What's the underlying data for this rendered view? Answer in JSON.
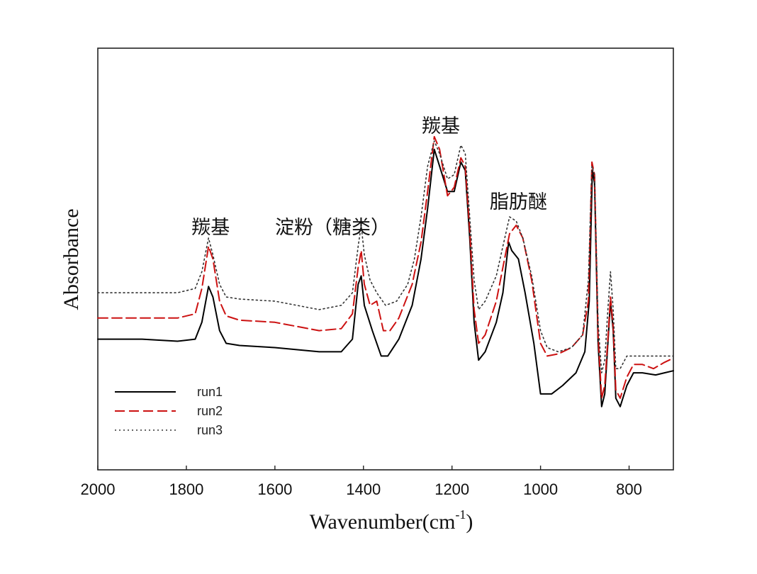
{
  "chart_data": {
    "type": "line",
    "xlabel": "Wavenumber(cm",
    "xlabel_sup": "-1",
    "xlabel_close": ")",
    "ylabel": "Absorbance",
    "xlim": [
      2000,
      700
    ],
    "x_reversed": true,
    "ylim": [
      0,
      1
    ],
    "y_ticks_shown": false,
    "grid": false,
    "x_ticks": [
      2000,
      1800,
      1600,
      1400,
      1200,
      1000,
      800
    ],
    "legend_position": "bottom-left",
    "annotations": [
      {
        "text": "羰基",
        "x": 1745,
        "y": 0.56
      },
      {
        "text": "淀粉（糖类）",
        "x": 1470,
        "y": 0.56
      },
      {
        "text": "羰基",
        "x": 1225,
        "y": 0.8
      },
      {
        "text": "脂肪醚",
        "x": 1050,
        "y": 0.62
      }
    ],
    "series": [
      {
        "name": "run1",
        "color": "#000000",
        "style": "solid",
        "points": [
          [
            2000,
            0.31
          ],
          [
            1900,
            0.31
          ],
          [
            1820,
            0.305
          ],
          [
            1780,
            0.31
          ],
          [
            1765,
            0.35
          ],
          [
            1750,
            0.435
          ],
          [
            1740,
            0.41
          ],
          [
            1725,
            0.33
          ],
          [
            1710,
            0.3
          ],
          [
            1680,
            0.295
          ],
          [
            1600,
            0.29
          ],
          [
            1500,
            0.28
          ],
          [
            1450,
            0.28
          ],
          [
            1425,
            0.31
          ],
          [
            1412,
            0.44
          ],
          [
            1405,
            0.46
          ],
          [
            1398,
            0.39
          ],
          [
            1380,
            0.33
          ],
          [
            1360,
            0.27
          ],
          [
            1345,
            0.27
          ],
          [
            1320,
            0.31
          ],
          [
            1290,
            0.39
          ],
          [
            1270,
            0.5
          ],
          [
            1255,
            0.62
          ],
          [
            1240,
            0.76
          ],
          [
            1228,
            0.72
          ],
          [
            1210,
            0.66
          ],
          [
            1195,
            0.66
          ],
          [
            1180,
            0.73
          ],
          [
            1170,
            0.71
          ],
          [
            1160,
            0.55
          ],
          [
            1150,
            0.35
          ],
          [
            1140,
            0.26
          ],
          [
            1125,
            0.28
          ],
          [
            1100,
            0.35
          ],
          [
            1085,
            0.42
          ],
          [
            1072,
            0.54
          ],
          [
            1065,
            0.52
          ],
          [
            1050,
            0.5
          ],
          [
            1035,
            0.42
          ],
          [
            1015,
            0.3
          ],
          [
            1000,
            0.18
          ],
          [
            975,
            0.18
          ],
          [
            950,
            0.2
          ],
          [
            920,
            0.23
          ],
          [
            900,
            0.28
          ],
          [
            890,
            0.4
          ],
          [
            883,
            0.71
          ],
          [
            878,
            0.68
          ],
          [
            870,
            0.3
          ],
          [
            862,
            0.15
          ],
          [
            855,
            0.18
          ],
          [
            848,
            0.3
          ],
          [
            842,
            0.4
          ],
          [
            836,
            0.33
          ],
          [
            830,
            0.17
          ],
          [
            820,
            0.15
          ],
          [
            805,
            0.2
          ],
          [
            790,
            0.23
          ],
          [
            770,
            0.23
          ],
          [
            740,
            0.225
          ],
          [
            720,
            0.23
          ],
          [
            700,
            0.235
          ]
        ]
      },
      {
        "name": "run2",
        "color": "#cc1111",
        "style": "dashed",
        "points": [
          [
            2000,
            0.36
          ],
          [
            1900,
            0.36
          ],
          [
            1820,
            0.36
          ],
          [
            1780,
            0.37
          ],
          [
            1765,
            0.43
          ],
          [
            1750,
            0.53
          ],
          [
            1740,
            0.5
          ],
          [
            1725,
            0.4
          ],
          [
            1710,
            0.365
          ],
          [
            1680,
            0.355
          ],
          [
            1600,
            0.35
          ],
          [
            1500,
            0.33
          ],
          [
            1450,
            0.335
          ],
          [
            1425,
            0.37
          ],
          [
            1412,
            0.48
          ],
          [
            1405,
            0.52
          ],
          [
            1398,
            0.44
          ],
          [
            1385,
            0.39
          ],
          [
            1370,
            0.4
          ],
          [
            1355,
            0.33
          ],
          [
            1340,
            0.33
          ],
          [
            1320,
            0.36
          ],
          [
            1290,
            0.44
          ],
          [
            1270,
            0.54
          ],
          [
            1255,
            0.66
          ],
          [
            1240,
            0.79
          ],
          [
            1228,
            0.76
          ],
          [
            1210,
            0.65
          ],
          [
            1195,
            0.67
          ],
          [
            1180,
            0.74
          ],
          [
            1170,
            0.72
          ],
          [
            1160,
            0.57
          ],
          [
            1150,
            0.38
          ],
          [
            1140,
            0.3
          ],
          [
            1125,
            0.32
          ],
          [
            1100,
            0.4
          ],
          [
            1085,
            0.48
          ],
          [
            1070,
            0.56
          ],
          [
            1055,
            0.58
          ],
          [
            1040,
            0.55
          ],
          [
            1020,
            0.45
          ],
          [
            1000,
            0.3
          ],
          [
            985,
            0.27
          ],
          [
            960,
            0.275
          ],
          [
            930,
            0.29
          ],
          [
            905,
            0.32
          ],
          [
            892,
            0.4
          ],
          [
            884,
            0.73
          ],
          [
            878,
            0.7
          ],
          [
            870,
            0.32
          ],
          [
            862,
            0.17
          ],
          [
            855,
            0.2
          ],
          [
            848,
            0.31
          ],
          [
            842,
            0.41
          ],
          [
            836,
            0.34
          ],
          [
            830,
            0.19
          ],
          [
            820,
            0.17
          ],
          [
            805,
            0.22
          ],
          [
            790,
            0.25
          ],
          [
            770,
            0.25
          ],
          [
            745,
            0.24
          ],
          [
            720,
            0.255
          ],
          [
            700,
            0.265
          ]
        ]
      },
      {
        "name": "run3",
        "color": "#333333",
        "style": "dotted",
        "points": [
          [
            2000,
            0.42
          ],
          [
            1900,
            0.42
          ],
          [
            1820,
            0.42
          ],
          [
            1780,
            0.43
          ],
          [
            1765,
            0.47
          ],
          [
            1750,
            0.55
          ],
          [
            1740,
            0.51
          ],
          [
            1725,
            0.44
          ],
          [
            1710,
            0.41
          ],
          [
            1680,
            0.405
          ],
          [
            1600,
            0.4
          ],
          [
            1500,
            0.38
          ],
          [
            1450,
            0.39
          ],
          [
            1425,
            0.42
          ],
          [
            1412,
            0.53
          ],
          [
            1405,
            0.58
          ],
          [
            1398,
            0.51
          ],
          [
            1385,
            0.45
          ],
          [
            1370,
            0.42
          ],
          [
            1350,
            0.39
          ],
          [
            1325,
            0.4
          ],
          [
            1300,
            0.44
          ],
          [
            1285,
            0.5
          ],
          [
            1270,
            0.6
          ],
          [
            1255,
            0.72
          ],
          [
            1240,
            0.78
          ],
          [
            1228,
            0.75
          ],
          [
            1210,
            0.69
          ],
          [
            1195,
            0.7
          ],
          [
            1180,
            0.77
          ],
          [
            1170,
            0.75
          ],
          [
            1160,
            0.6
          ],
          [
            1150,
            0.45
          ],
          [
            1140,
            0.38
          ],
          [
            1125,
            0.4
          ],
          [
            1100,
            0.46
          ],
          [
            1085,
            0.53
          ],
          [
            1070,
            0.6
          ],
          [
            1055,
            0.59
          ],
          [
            1040,
            0.55
          ],
          [
            1020,
            0.46
          ],
          [
            1000,
            0.33
          ],
          [
            985,
            0.29
          ],
          [
            960,
            0.28
          ],
          [
            930,
            0.29
          ],
          [
            905,
            0.32
          ],
          [
            892,
            0.45
          ],
          [
            884,
            0.72
          ],
          [
            878,
            0.7
          ],
          [
            870,
            0.35
          ],
          [
            862,
            0.23
          ],
          [
            855,
            0.26
          ],
          [
            848,
            0.38
          ],
          [
            842,
            0.47
          ],
          [
            836,
            0.38
          ],
          [
            830,
            0.24
          ],
          [
            820,
            0.24
          ],
          [
            805,
            0.27
          ],
          [
            790,
            0.27
          ],
          [
            770,
            0.27
          ],
          [
            745,
            0.27
          ],
          [
            720,
            0.27
          ],
          [
            700,
            0.27
          ]
        ]
      }
    ]
  }
}
